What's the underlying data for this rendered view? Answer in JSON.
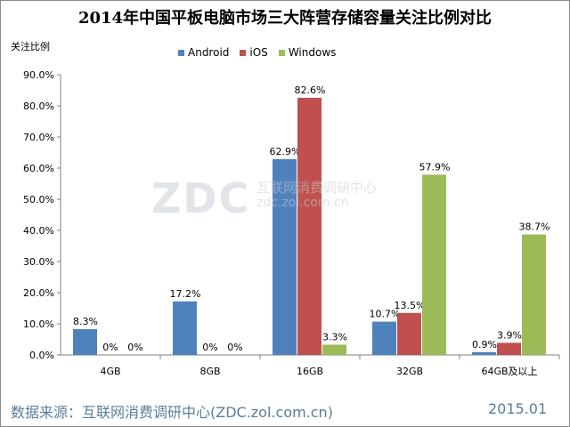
{
  "chart_data": {
    "type": "bar",
    "title": "2014年中国平板电脑市场三大阵营存储容量关注比例对比",
    "ylabel": "关注比例",
    "xlabel": "",
    "categories": [
      "4GB",
      "8GB",
      "16GB",
      "32GB",
      "64GB及以上"
    ],
    "series": [
      {
        "name": "Android",
        "values": [
          8.3,
          17.2,
          62.9,
          10.7,
          0.9
        ],
        "labels": [
          "8.3%",
          "17.2%",
          "62.9%",
          "10.7%",
          "0.9%"
        ],
        "color": "#4f81bd"
      },
      {
        "name": "iOS",
        "values": [
          0,
          0,
          82.6,
          13.5,
          3.9
        ],
        "labels": [
          "0%",
          "0%",
          "82.6%",
          "13.5%",
          "3.9%"
        ],
        "color": "#c0504d"
      },
      {
        "name": "Windows",
        "values": [
          0,
          0,
          3.3,
          57.9,
          38.7
        ],
        "labels": [
          "0%",
          "0%",
          "3.3%",
          "57.9%",
          "38.7%"
        ],
        "color": "#9bbb59"
      }
    ],
    "ylim": [
      0,
      90
    ],
    "yticks": [
      "0.0%",
      "10.0%",
      "20.0%",
      "30.0%",
      "40.0%",
      "50.0%",
      "60.0%",
      "70.0%",
      "80.0%",
      "90.0%"
    ],
    "grid": false,
    "legend_position": "top"
  },
  "watermark": {
    "logo": "ZDC",
    "name": "互联网消费调研中心",
    "url": "zdc.zol.com.cn"
  },
  "footer": {
    "source": "数据来源：互联网消费调研中心(ZDC.zol.com.cn)",
    "date": "2015.01"
  }
}
